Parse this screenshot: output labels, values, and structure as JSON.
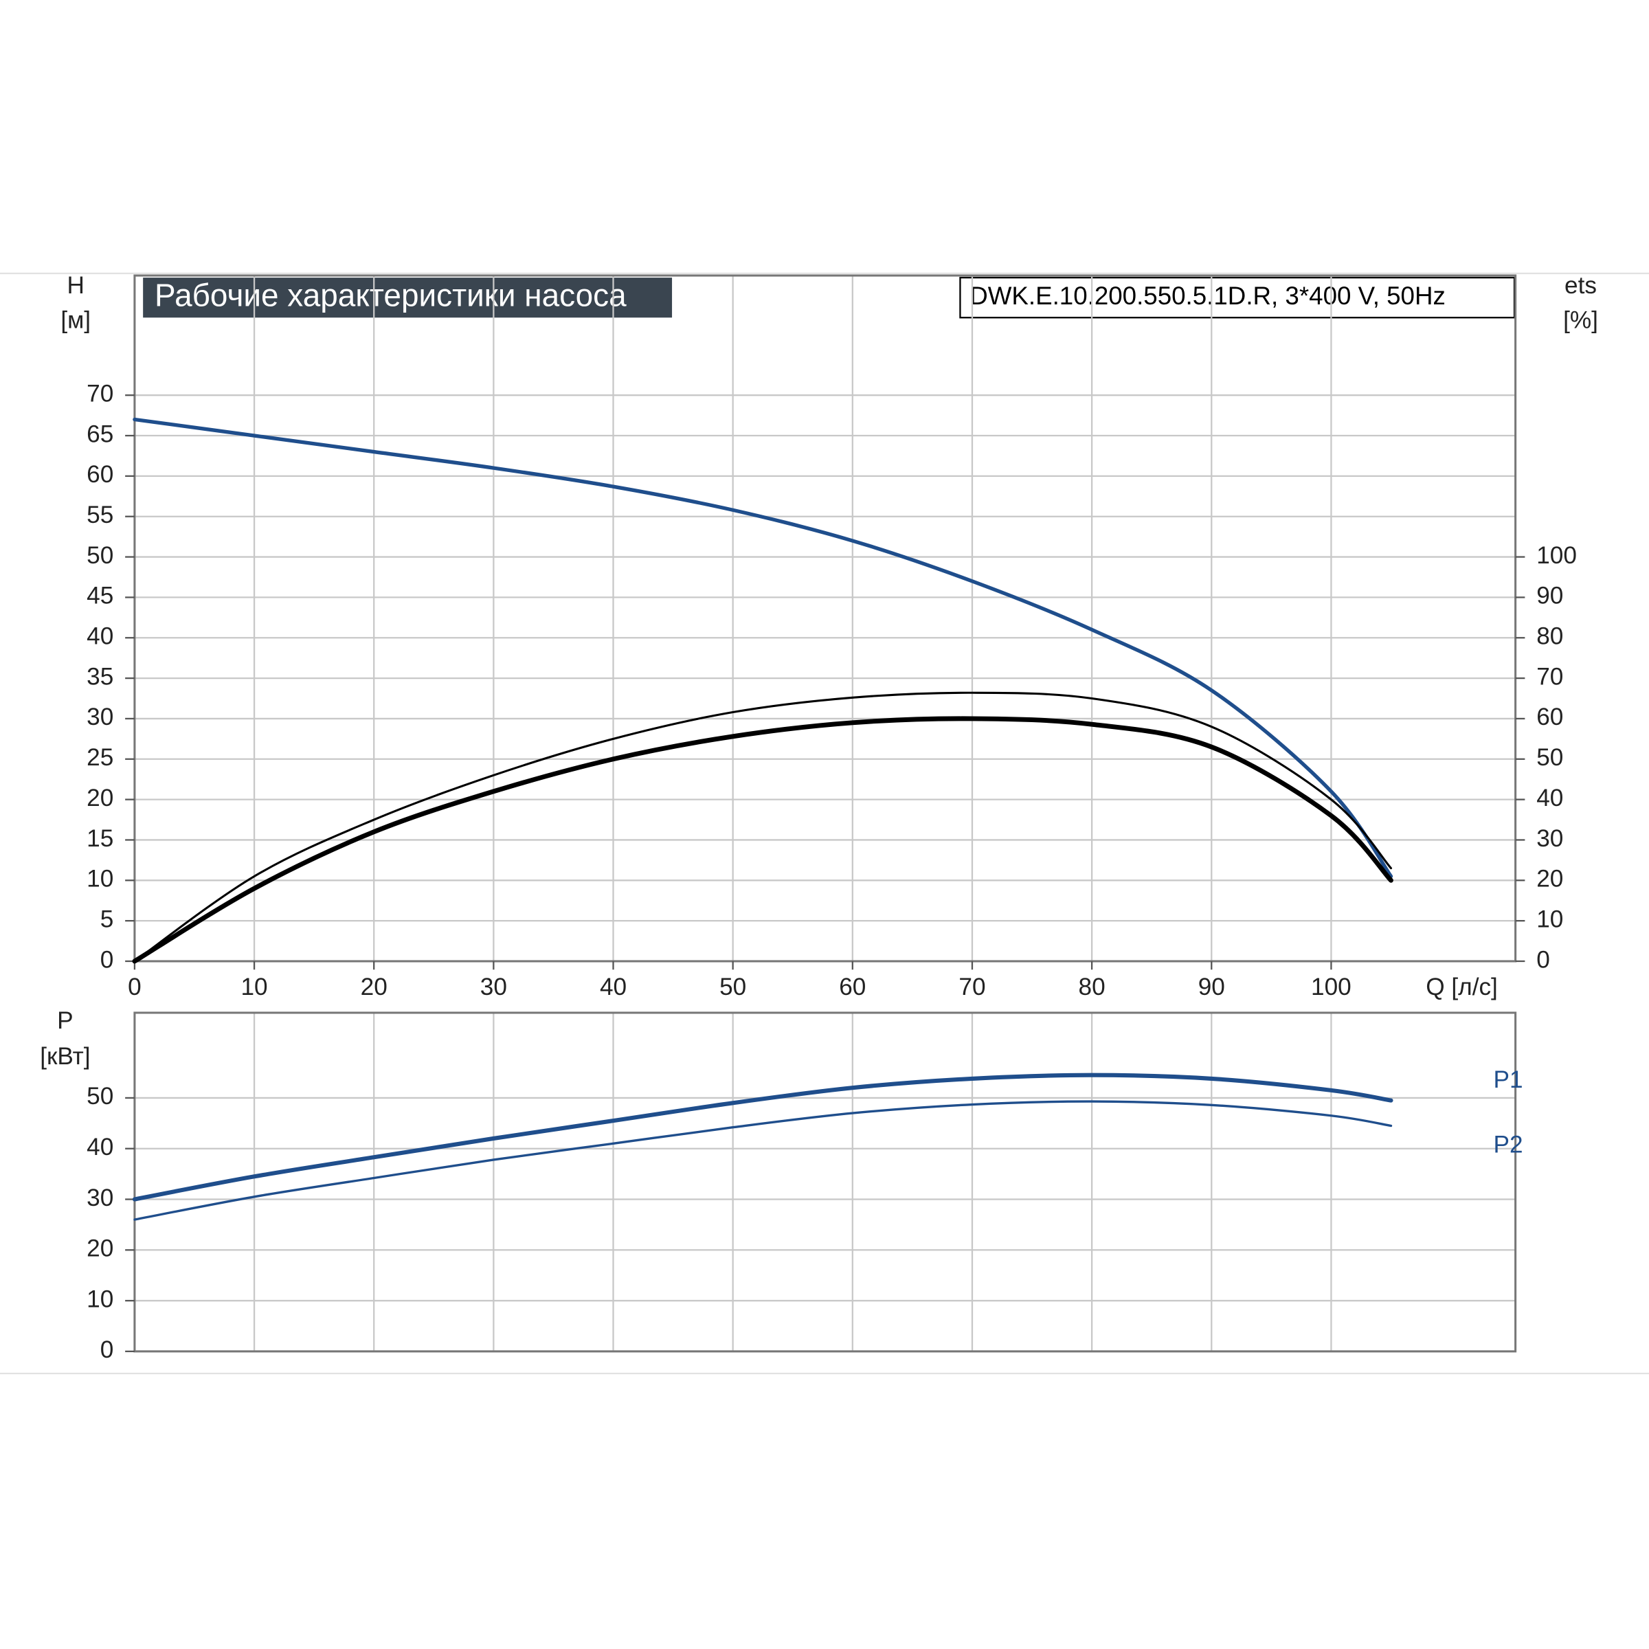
{
  "chart_data": [
    {
      "type": "line",
      "title": "Рабочие характеристики насоса",
      "subtitle": "DWK.E.10.200.550.5.1D.R, 3*400 V, 50Hz",
      "ylabel": "H",
      "yunit": "[м]",
      "y2label": "ets",
      "y2unit": "[%]",
      "xlabel": "Q [л/с]",
      "x": [
        0,
        10,
        20,
        30,
        40,
        50,
        60,
        70,
        80,
        90,
        100,
        105
      ],
      "xlim": [
        0,
        115.4
      ],
      "xticks": [
        0,
        10,
        20,
        30,
        40,
        50,
        60,
        70,
        80,
        90,
        100
      ],
      "ylim": [
        0,
        84.8
      ],
      "yticks": [
        0,
        5,
        10,
        15,
        20,
        25,
        30,
        35,
        40,
        45,
        50,
        55,
        60,
        65,
        70
      ],
      "y2lim": [
        0,
        169.6
      ],
      "y2ticks": [
        0,
        10,
        20,
        30,
        40,
        50,
        60,
        70,
        80,
        90,
        100
      ],
      "grid": true,
      "series": [
        {
          "color": "#1f4e8c",
          "line_width": 3.5,
          "values": [
            67,
            65,
            63,
            61,
            58.7,
            55.8,
            52,
            47,
            41,
            33.5,
            21,
            10.5
          ]
        },
        {
          "color": "#000000",
          "line_width": 4.5,
          "axis": "y2",
          "values": [
            0,
            18,
            32,
            42,
            50,
            55.6,
            59,
            60,
            58.6,
            53,
            36,
            20
          ]
        },
        {
          "color": "#000000",
          "line_width": 2,
          "axis": "y2",
          "values": [
            0,
            21,
            35,
            46,
            55,
            61.6,
            65.2,
            66.4,
            65,
            58,
            40,
            23
          ]
        }
      ]
    },
    {
      "type": "line",
      "ylabel": "P",
      "yunit": "[кВт]",
      "x": [
        0,
        10,
        20,
        30,
        40,
        50,
        60,
        70,
        80,
        90,
        100,
        105
      ],
      "xlim": [
        0,
        115.4
      ],
      "ylim": [
        0,
        66.8
      ],
      "yticks": [
        0,
        10,
        20,
        30,
        40,
        50
      ],
      "grid": true,
      "series": [
        {
          "name": "P1",
          "color": "#1f4e8c",
          "line_width": 4,
          "values": [
            30,
            34.5,
            38.3,
            42,
            45.5,
            49,
            52,
            53.8,
            54.5,
            53.8,
            51.5,
            49.5
          ]
        },
        {
          "name": "P2",
          "color": "#1f4e8c",
          "line_width": 2.2,
          "values": [
            26,
            30.5,
            34.2,
            37.8,
            41,
            44.2,
            47,
            48.7,
            49.3,
            48.6,
            46.5,
            44.5
          ]
        }
      ]
    }
  ]
}
